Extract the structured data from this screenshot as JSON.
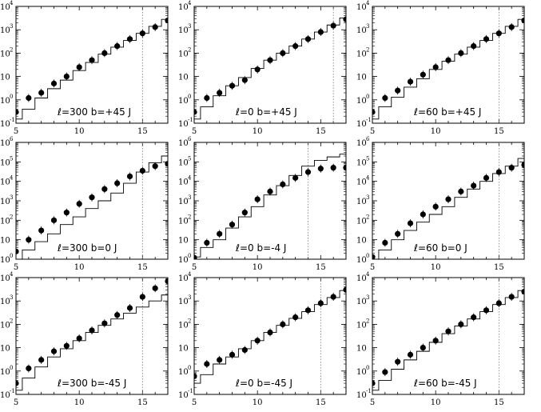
{
  "chart_data": [
    {
      "type": "scatter",
      "label_l": "ℓ=300",
      "label_b": "b=+45",
      "band": "J",
      "x_ticks": [
        "5",
        "10",
        "15"
      ],
      "y_ticks": [
        {
          "base": "10",
          "exp": "-1"
        },
        {
          "base": "10",
          "exp": "0"
        },
        {
          "base": "10",
          "exp": ""
        },
        {
          "base": "10",
          "exp": "2"
        },
        {
          "base": "10",
          "exp": "3"
        },
        {
          "base": "10",
          "exp": "4"
        }
      ],
      "xlim": [
        5,
        17
      ],
      "ylim_log10": [
        -1,
        4
      ],
      "y_scale": "log",
      "completeness_limit": 15,
      "points": {
        "x": [
          5,
          6,
          7,
          8,
          9,
          10,
          11,
          12,
          13,
          14,
          15,
          16,
          17
        ],
        "y": [
          0.3,
          1.2,
          2,
          5,
          10,
          25,
          50,
          100,
          200,
          400,
          700,
          1300,
          2500
        ]
      },
      "model_steps": {
        "x": [
          5,
          6,
          7,
          8,
          9,
          10,
          11,
          12,
          13,
          14,
          15,
          16,
          17
        ],
        "y": [
          0.15,
          0.4,
          1.2,
          3,
          7,
          18,
          40,
          90,
          180,
          350,
          700,
          1400,
          2800
        ]
      }
    },
    {
      "type": "scatter",
      "label_l": "ℓ=0",
      "label_b": "b=+45",
      "band": "J",
      "x_ticks": [
        "5",
        "10",
        "15"
      ],
      "y_ticks": [
        {
          "base": "10",
          "exp": "-1"
        },
        {
          "base": "10",
          "exp": "0"
        },
        {
          "base": "10",
          "exp": ""
        },
        {
          "base": "10",
          "exp": "2"
        },
        {
          "base": "10",
          "exp": "3"
        },
        {
          "base": "10",
          "exp": "4"
        }
      ],
      "xlim": [
        5,
        17
      ],
      "ylim_log10": [
        -1,
        4
      ],
      "y_scale": "log",
      "completeness_limit": 16,
      "points": {
        "x": [
          5,
          6,
          7,
          8,
          9,
          10,
          11,
          12,
          13,
          14,
          15,
          16,
          17
        ],
        "y": [
          0.3,
          1.2,
          2,
          4,
          7,
          20,
          50,
          100,
          200,
          400,
          800,
          1500,
          2800
        ]
      },
      "model_steps": {
        "x": [
          5,
          6,
          7,
          8,
          9,
          10,
          11,
          12,
          13,
          14,
          15,
          16,
          17
        ],
        "y": [
          0.15,
          0.5,
          1.5,
          4,
          9,
          22,
          50,
          100,
          200,
          400,
          800,
          1600,
          3200
        ]
      }
    },
    {
      "type": "scatter",
      "label_l": "ℓ=60",
      "label_b": "b=+45",
      "band": "J",
      "x_ticks": [
        "5",
        "10",
        "15"
      ],
      "y_ticks": [
        {
          "base": "10",
          "exp": "-1"
        },
        {
          "base": "10",
          "exp": "0"
        },
        {
          "base": "10",
          "exp": ""
        },
        {
          "base": "10",
          "exp": "2"
        },
        {
          "base": "10",
          "exp": "3"
        },
        {
          "base": "10",
          "exp": "4"
        }
      ],
      "xlim": [
        5,
        17
      ],
      "ylim_log10": [
        -1,
        4
      ],
      "y_scale": "log",
      "completeness_limit": 15,
      "points": {
        "x": [
          5,
          6,
          7,
          8,
          9,
          10,
          11,
          12,
          13,
          14,
          15,
          16,
          17
        ],
        "y": [
          0.3,
          1.2,
          2.5,
          6,
          12,
          25,
          50,
          100,
          200,
          400,
          700,
          1300,
          2500
        ]
      },
      "model_steps": {
        "x": [
          5,
          6,
          7,
          8,
          9,
          10,
          11,
          12,
          13,
          14,
          15,
          16,
          17
        ],
        "y": [
          0.15,
          0.5,
          1.3,
          3.5,
          8,
          20,
          45,
          90,
          180,
          350,
          700,
          1400,
          2800
        ]
      }
    },
    {
      "type": "scatter",
      "label_l": "ℓ=300",
      "label_b": "b=0",
      "band": "J",
      "x_ticks": [
        "5",
        "10",
        "15"
      ],
      "y_ticks": [
        {
          "base": "10",
          "exp": "0"
        },
        {
          "base": "10",
          "exp": ""
        },
        {
          "base": "10",
          "exp": "2"
        },
        {
          "base": "10",
          "exp": "3"
        },
        {
          "base": "10",
          "exp": "4"
        },
        {
          "base": "10",
          "exp": "5"
        },
        {
          "base": "10",
          "exp": "6"
        }
      ],
      "xlim": [
        5,
        17
      ],
      "ylim_log10": [
        0,
        6
      ],
      "y_scale": "log",
      "completeness_limit": 15,
      "points": {
        "x": [
          5,
          6,
          7,
          8,
          9,
          10,
          11,
          12,
          13,
          14,
          15,
          16,
          17
        ],
        "y": [
          2.5,
          10,
          30,
          100,
          250,
          700,
          1500,
          4000,
          8000,
          18000,
          35000,
          60000,
          80000
        ]
      },
      "model_steps": {
        "x": [
          5,
          6,
          7,
          8,
          9,
          10,
          11,
          12,
          13,
          14,
          15,
          16,
          17
        ],
        "y": [
          1,
          3,
          8,
          20,
          60,
          150,
          400,
          1000,
          2500,
          8000,
          30000,
          90000,
          200000
        ]
      }
    },
    {
      "type": "scatter",
      "label_l": "ℓ=0",
      "label_b": "b=-4",
      "band": "J",
      "x_ticks": [
        "5",
        "10",
        "15"
      ],
      "y_ticks": [
        {
          "base": "10",
          "exp": "0"
        },
        {
          "base": "10",
          "exp": ""
        },
        {
          "base": "10",
          "exp": "2"
        },
        {
          "base": "10",
          "exp": "3"
        },
        {
          "base": "10",
          "exp": "4"
        },
        {
          "base": "10",
          "exp": "5"
        },
        {
          "base": "10",
          "exp": "6"
        }
      ],
      "xlim": [
        5,
        17
      ],
      "ylim_log10": [
        0,
        6
      ],
      "y_scale": "log",
      "completeness_limit": 14,
      "points": {
        "x": [
          5,
          6,
          7,
          8,
          9,
          10,
          11,
          12,
          13,
          14,
          15,
          16,
          17
        ],
        "y": [
          1.2,
          7,
          20,
          60,
          250,
          1200,
          3000,
          7000,
          15000,
          30000,
          45000,
          50000,
          50000
        ]
      },
      "model_steps": {
        "x": [
          5,
          6,
          7,
          8,
          9,
          10,
          11,
          12,
          13,
          14,
          15,
          16,
          17
        ],
        "y": [
          1.3,
          4,
          10,
          40,
          150,
          500,
          2000,
          6000,
          20000,
          60000,
          120000,
          180000,
          250000
        ]
      }
    },
    {
      "type": "scatter",
      "label_l": "ℓ=60",
      "label_b": "b=0",
      "band": "J",
      "x_ticks": [
        "5",
        "10",
        "15"
      ],
      "y_ticks": [
        {
          "base": "10",
          "exp": "0"
        },
        {
          "base": "10",
          "exp": ""
        },
        {
          "base": "10",
          "exp": "2"
        },
        {
          "base": "10",
          "exp": "3"
        },
        {
          "base": "10",
          "exp": "4"
        },
        {
          "base": "10",
          "exp": "5"
        },
        {
          "base": "10",
          "exp": "6"
        }
      ],
      "xlim": [
        5,
        17
      ],
      "ylim_log10": [
        0,
        6
      ],
      "y_scale": "log",
      "completeness_limit": 15,
      "points": {
        "x": [
          5,
          6,
          7,
          8,
          9,
          10,
          11,
          12,
          13,
          14,
          15,
          16,
          17
        ],
        "y": [
          1.3,
          7,
          20,
          70,
          200,
          500,
          1200,
          3000,
          6000,
          15000,
          30000,
          50000,
          70000
        ]
      },
      "model_steps": {
        "x": [
          5,
          6,
          7,
          8,
          9,
          10,
          11,
          12,
          13,
          14,
          15,
          16,
          17
        ],
        "y": [
          1,
          3,
          10,
          30,
          80,
          200,
          500,
          1500,
          4000,
          10000,
          25000,
          60000,
          150000
        ]
      }
    },
    {
      "type": "scatter",
      "label_l": "ℓ=300",
      "label_b": "b=-45",
      "band": "J",
      "x_ticks": [
        "5",
        "10",
        "15"
      ],
      "y_ticks": [
        {
          "base": "10",
          "exp": "-1"
        },
        {
          "base": "10",
          "exp": "0"
        },
        {
          "base": "10",
          "exp": ""
        },
        {
          "base": "10",
          "exp": "2"
        },
        {
          "base": "10",
          "exp": "3"
        },
        {
          "base": "10",
          "exp": "4"
        }
      ],
      "xlim": [
        5,
        17
      ],
      "ylim_log10": [
        -1,
        4
      ],
      "y_scale": "log",
      "completeness_limit": 15,
      "points": {
        "x": [
          5,
          6,
          7,
          8,
          9,
          10,
          11,
          12,
          13,
          14,
          15,
          16,
          17
        ],
        "y": [
          0.3,
          1.3,
          3,
          7,
          12,
          25,
          55,
          110,
          250,
          500,
          1500,
          3500,
          7000
        ]
      },
      "model_steps": {
        "x": [
          5,
          6,
          7,
          8,
          9,
          10,
          11,
          12,
          13,
          14,
          15,
          16,
          17
        ],
        "y": [
          0.15,
          0.5,
          1.5,
          4,
          9,
          20,
          45,
          90,
          170,
          300,
          550,
          1000,
          1800
        ]
      }
    },
    {
      "type": "scatter",
      "label_l": "ℓ=0",
      "label_b": "b=-45",
      "band": "J",
      "x_ticks": [
        "5",
        "10",
        "15"
      ],
      "y_ticks": [
        {
          "base": "10",
          "exp": "-1"
        },
        {
          "base": "10",
          "exp": "0"
        },
        {
          "base": "10",
          "exp": ""
        },
        {
          "base": "10",
          "exp": "2"
        },
        {
          "base": "10",
          "exp": "3"
        },
        {
          "base": "10",
          "exp": "4"
        }
      ],
      "xlim": [
        5,
        17
      ],
      "ylim_log10": [
        -1,
        4
      ],
      "y_scale": "log",
      "completeness_limit": 15,
      "points": {
        "x": [
          5,
          6,
          7,
          8,
          9,
          10,
          11,
          12,
          13,
          14,
          15,
          16,
          17
        ],
        "y": [
          0.6,
          2,
          3,
          5,
          8,
          20,
          45,
          100,
          200,
          400,
          800,
          1500,
          3000
        ]
      },
      "model_steps": {
        "x": [
          5,
          6,
          7,
          8,
          9,
          10,
          11,
          12,
          13,
          14,
          15,
          16,
          17
        ],
        "y": [
          0.3,
          0.7,
          2,
          4,
          9,
          20,
          45,
          90,
          180,
          350,
          700,
          1400,
          2800
        ]
      }
    },
    {
      "type": "scatter",
      "label_l": "ℓ=60",
      "label_b": "b=-45",
      "band": "J",
      "x_ticks": [
        "5",
        "10",
        "15"
      ],
      "y_ticks": [
        {
          "base": "10",
          "exp": "-1"
        },
        {
          "base": "10",
          "exp": "0"
        },
        {
          "base": "10",
          "exp": ""
        },
        {
          "base": "10",
          "exp": "2"
        },
        {
          "base": "10",
          "exp": "3"
        },
        {
          "base": "10",
          "exp": "4"
        }
      ],
      "xlim": [
        5,
        17
      ],
      "ylim_log10": [
        -1,
        4
      ],
      "y_scale": "log",
      "completeness_limit": 15,
      "points": {
        "x": [
          5,
          6,
          7,
          8,
          9,
          10,
          11,
          12,
          13,
          14,
          15,
          16,
          17
        ],
        "y": [
          0.3,
          0.9,
          2.5,
          5,
          10,
          20,
          50,
          100,
          200,
          400,
          800,
          1500,
          2500
        ]
      },
      "model_steps": {
        "x": [
          5,
          6,
          7,
          8,
          9,
          10,
          11,
          12,
          13,
          14,
          15,
          16,
          17
        ],
        "y": [
          0.15,
          0.4,
          1.2,
          3,
          7,
          17,
          40,
          85,
          170,
          350,
          700,
          1400,
          2800
        ]
      }
    }
  ]
}
